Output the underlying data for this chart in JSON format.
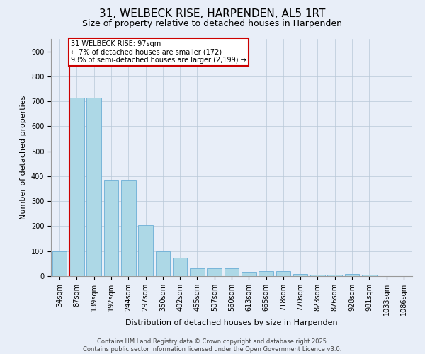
{
  "title1": "31, WELBECK RISE, HARPENDEN, AL5 1RT",
  "title2": "Size of property relative to detached houses in Harpenden",
  "xlabel": "Distribution of detached houses by size in Harpenden",
  "ylabel": "Number of detached properties",
  "categories": [
    "34sqm",
    "87sqm",
    "139sqm",
    "192sqm",
    "244sqm",
    "297sqm",
    "350sqm",
    "402sqm",
    "455sqm",
    "507sqm",
    "560sqm",
    "613sqm",
    "665sqm",
    "718sqm",
    "770sqm",
    "823sqm",
    "876sqm",
    "928sqm",
    "981sqm",
    "1033sqm",
    "1086sqm"
  ],
  "values": [
    100,
    715,
    715,
    385,
    385,
    205,
    98,
    75,
    30,
    32,
    30,
    18,
    20,
    20,
    8,
    5,
    5,
    8,
    5,
    0,
    0
  ],
  "bar_color": "#add8e6",
  "bar_edge_color": "#6baed6",
  "bar_linewidth": 0.6,
  "highlight_bar_index": 1,
  "highlight_color": "#cc0000",
  "annotation_text": "31 WELBECK RISE: 97sqm\n← 7% of detached houses are smaller (172)\n93% of semi-detached houses are larger (2,199) →",
  "annotation_box_color": "#ffffff",
  "annotation_border_color": "#cc0000",
  "ylim": [
    0,
    950
  ],
  "yticks": [
    0,
    100,
    200,
    300,
    400,
    500,
    600,
    700,
    800,
    900
  ],
  "background_color": "#e8eef8",
  "footer_text": "Contains HM Land Registry data © Crown copyright and database right 2025.\nContains public sector information licensed under the Open Government Licence v3.0.",
  "title1_fontsize": 11,
  "title2_fontsize": 9,
  "xlabel_fontsize": 8,
  "ylabel_fontsize": 8,
  "tick_fontsize": 7,
  "annotation_fontsize": 7,
  "footer_fontsize": 6
}
